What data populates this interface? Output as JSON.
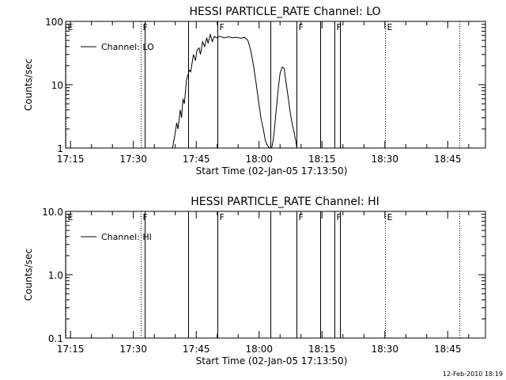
{
  "footer": {
    "timestamp": "12-Feb-2010 18:19"
  },
  "chart_data": [
    {
      "type": "line",
      "title": "HESSI PARTICLE_RATE Channel: LO",
      "xlabel": "Start Time (02-Jan-05 17:13:50)",
      "ylabel": "Counts/sec",
      "yscale": "log",
      "xlim": [
        "17:13:50",
        "18:54:00"
      ],
      "ylim": [
        1,
        100
      ],
      "x_ticks": [
        "17:15",
        "17:30",
        "17:45",
        "18:00",
        "18:15",
        "18:30",
        "18:45"
      ],
      "y_ticks": [
        "1",
        "10",
        "100"
      ],
      "legend": {
        "placement": "top-left",
        "entries": [
          "Channel: LO"
        ]
      },
      "grid": false,
      "markers": [
        {
          "label": "E",
          "time": "17:13:50",
          "style": "dotted"
        },
        {
          "label": "F",
          "time": "17:31:50",
          "style": "dotted"
        },
        {
          "label": "",
          "time": "17:32:40",
          "style": "solid"
        },
        {
          "label": "",
          "time": "17:43:00",
          "style": "solid"
        },
        {
          "label": "F",
          "time": "17:50:00",
          "style": "solid"
        },
        {
          "label": "",
          "time": "18:02:40",
          "style": "solid"
        },
        {
          "label": "F",
          "time": "18:08:50",
          "style": "solid"
        },
        {
          "label": "",
          "time": "18:14:40",
          "style": "solid"
        },
        {
          "label": "F",
          "time": "18:18:00",
          "style": "solid"
        },
        {
          "label": "",
          "time": "18:19:20",
          "style": "solid"
        },
        {
          "label": "E",
          "time": "18:30:00",
          "style": "dotted"
        },
        {
          "label": "",
          "time": "18:47:50",
          "style": "dotted"
        }
      ],
      "series": [
        {
          "name": "Channel: LO",
          "x": [
            "17:39:20",
            "17:39:50",
            "17:40:20",
            "17:40:40",
            "17:41:10",
            "17:41:30",
            "17:41:50",
            "17:42:10",
            "17:42:40",
            "17:43:00",
            "17:43:20",
            "17:43:40",
            "17:44:20",
            "17:44:50",
            "17:45:10",
            "17:45:40",
            "17:46:00",
            "17:46:30",
            "17:47:00",
            "17:47:30",
            "17:47:50",
            "17:48:20",
            "17:48:50",
            "17:49:20",
            "17:49:50",
            "17:50:40",
            "17:51:40",
            "17:52:40",
            "17:53:40",
            "17:54:40",
            "17:55:40",
            "17:56:30",
            "17:57:20",
            "17:58:00",
            "17:58:40",
            "17:59:20",
            "18:00:00",
            "18:00:30",
            "18:01:00",
            "18:01:30",
            "18:02:00",
            "18:02:20",
            "18:02:40",
            "18:02:50",
            "18:02:55",
            "18:03:00",
            "18:03:20",
            "18:03:40",
            "18:04:00",
            "18:04:20",
            "18:04:40",
            "18:05:00",
            "18:05:30",
            "18:06:00",
            "18:06:20",
            "18:06:50",
            "18:07:20",
            "18:07:50",
            "18:08:20",
            "18:08:50",
            "18:09:00"
          ],
          "values": [
            1.0,
            1.5,
            2.5,
            2.0,
            4.0,
            3.0,
            6.0,
            5.0,
            12,
            14,
            17,
            16,
            30,
            24,
            35,
            38,
            30,
            48,
            40,
            55,
            45,
            62,
            48,
            58,
            55,
            58,
            55,
            57,
            55,
            56,
            54,
            56,
            50,
            35,
            20,
            10,
            4.8,
            2.8,
            2.0,
            1.3,
            1.1,
            1.02,
            1.0,
            1.0,
            1.0,
            1.0,
            1.3,
            2.0,
            3.5,
            6.0,
            10,
            15,
            19,
            18,
            12,
            7,
            4,
            2.5,
            1.8,
            1.2,
            1.0
          ]
        }
      ]
    },
    {
      "type": "line",
      "title": "HESSI PARTICLE_RATE Channel: HI",
      "xlabel": "Start Time (02-Jan-05 17:13:50)",
      "ylabel": "Counts/sec",
      "yscale": "log",
      "xlim": [
        "17:13:50",
        "18:54:00"
      ],
      "ylim": [
        0.1,
        10.0
      ],
      "x_ticks": [
        "17:15",
        "17:30",
        "17:45",
        "18:00",
        "18:15",
        "18:30",
        "18:45"
      ],
      "y_ticks": [
        "0.1",
        "1.0",
        "10.0"
      ],
      "legend": {
        "placement": "top-left",
        "entries": [
          "Channel: HI"
        ]
      },
      "grid": false,
      "markers": [
        {
          "label": "E",
          "time": "17:13:50",
          "style": "dotted"
        },
        {
          "label": "F",
          "time": "17:31:50",
          "style": "dotted"
        },
        {
          "label": "",
          "time": "17:32:40",
          "style": "solid"
        },
        {
          "label": "",
          "time": "17:43:00",
          "style": "solid"
        },
        {
          "label": "F",
          "time": "17:50:00",
          "style": "solid"
        },
        {
          "label": "",
          "time": "18:02:40",
          "style": "solid"
        },
        {
          "label": "F",
          "time": "18:08:50",
          "style": "solid"
        },
        {
          "label": "",
          "time": "18:14:40",
          "style": "solid"
        },
        {
          "label": "F",
          "time": "18:18:00",
          "style": "solid"
        },
        {
          "label": "",
          "time": "18:19:20",
          "style": "solid"
        },
        {
          "label": "E",
          "time": "18:30:00",
          "style": "dotted"
        },
        {
          "label": "",
          "time": "18:47:50",
          "style": "dotted"
        }
      ],
      "series": [
        {
          "name": "Channel: HI",
          "x": [],
          "values": []
        }
      ]
    }
  ]
}
